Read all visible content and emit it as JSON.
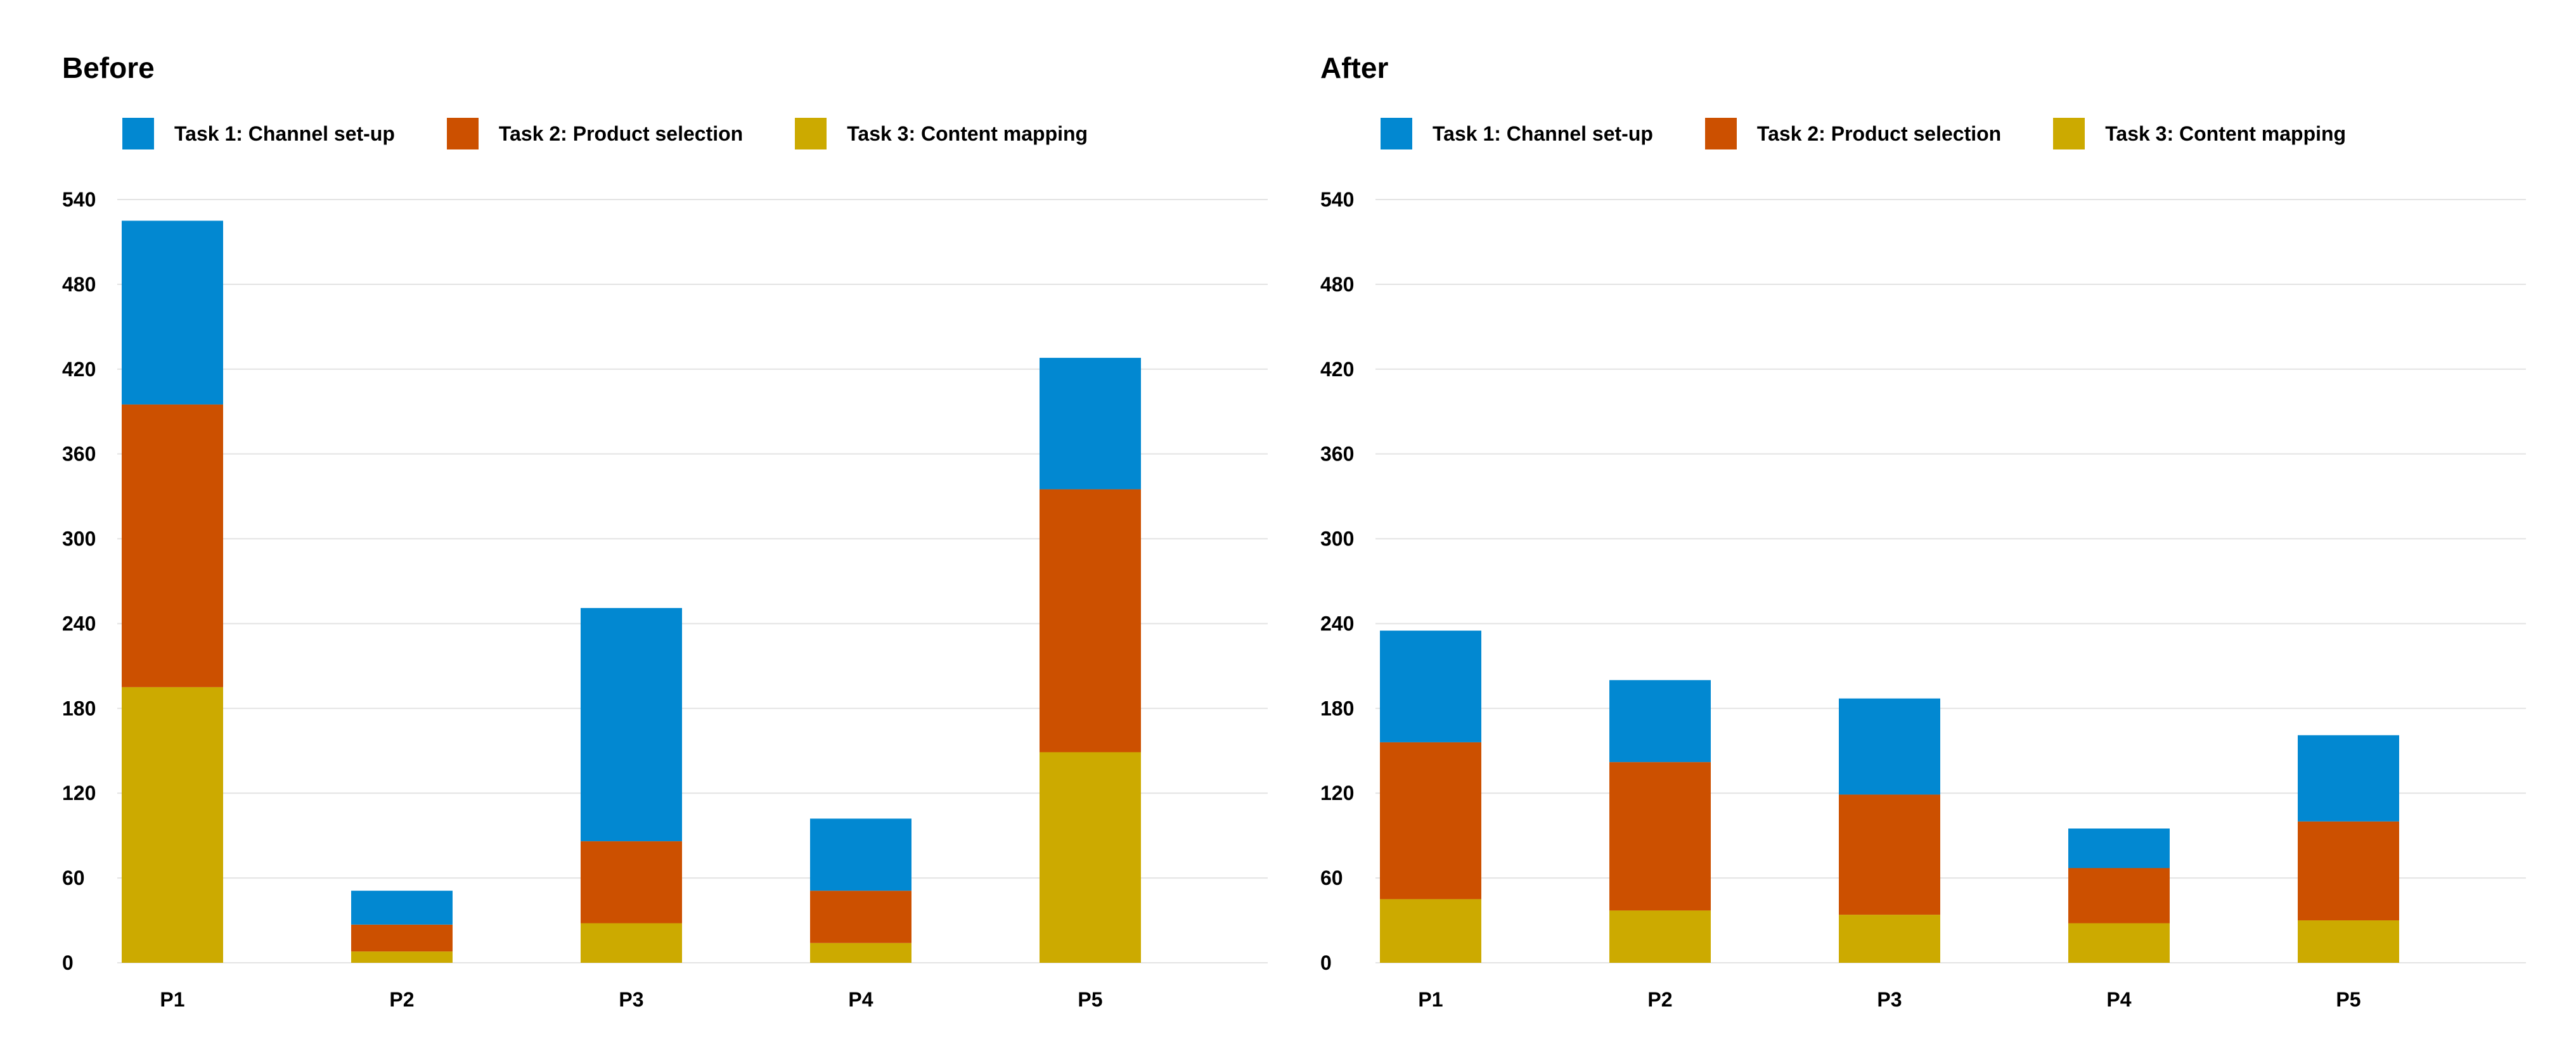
{
  "colors": {
    "task1": "#0288D1",
    "task2": "#CC5000",
    "task3": "#CCAA00",
    "grid": "#E3E3E3"
  },
  "legend": [
    {
      "label": "Task 1: Channel set-up",
      "color": "#0288D1"
    },
    {
      "label": "Task 2: Product selection",
      "color": "#CC5000"
    },
    {
      "label": "Task 3: Content mapping",
      "color": "#CCAA00"
    }
  ],
  "chart_data": [
    {
      "type": "bar",
      "stacked": true,
      "title": "Before",
      "categories": [
        "P1",
        "P2",
        "P3",
        "P4",
        "P5"
      ],
      "series": [
        {
          "name": "Task 3: Content mapping",
          "values": [
            195,
            8,
            28,
            14,
            149
          ]
        },
        {
          "name": "Task 2: Product selection",
          "values": [
            200,
            19,
            58,
            37,
            186
          ]
        },
        {
          "name": "Task 1: Channel set-up",
          "values": [
            130,
            24,
            165,
            51,
            93
          ]
        }
      ],
      "yticks": [
        0,
        60,
        120,
        180,
        240,
        300,
        360,
        420,
        480,
        540
      ],
      "ylim": [
        0,
        540
      ],
      "xlabel": "",
      "ylabel": "",
      "grid": true,
      "legend_position": "top-left"
    },
    {
      "type": "bar",
      "stacked": true,
      "title": "After",
      "categories": [
        "P1",
        "P2",
        "P3",
        "P4",
        "P5"
      ],
      "series": [
        {
          "name": "Task 3: Content mapping",
          "values": [
            45,
            37,
            34,
            28,
            30
          ]
        },
        {
          "name": "Task 2: Product selection",
          "values": [
            111,
            105,
            85,
            39,
            70
          ]
        },
        {
          "name": "Task 1: Channel set-up",
          "values": [
            79,
            58,
            68,
            28,
            61
          ]
        }
      ],
      "yticks": [
        0,
        60,
        120,
        180,
        240,
        300,
        360,
        420,
        480,
        540
      ],
      "ylim": [
        0,
        540
      ],
      "xlabel": "",
      "ylabel": "",
      "grid": true,
      "legend_position": "top-left"
    }
  ]
}
